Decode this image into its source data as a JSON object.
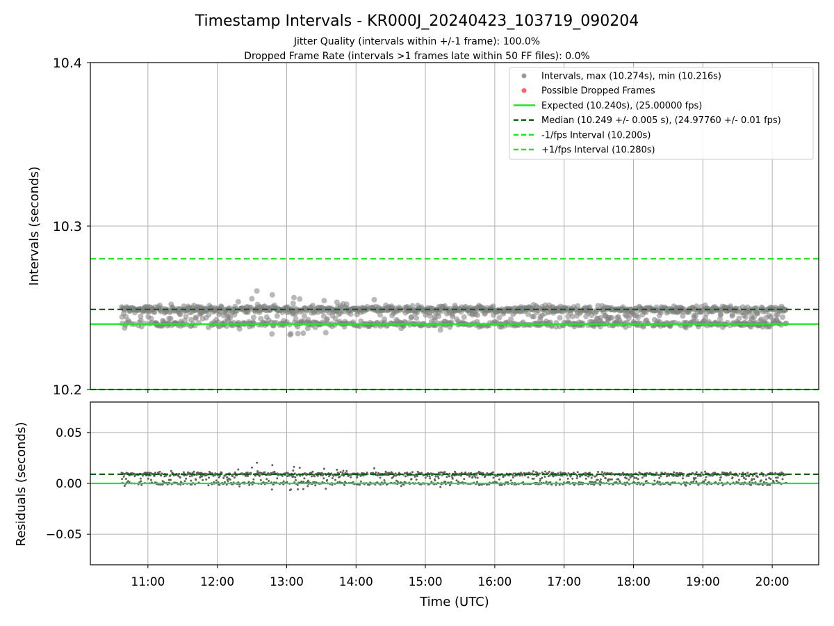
{
  "title": "Timestamp Intervals - KR000J_20240423_103719_090204",
  "subtitle_1": "Jitter Quality (intervals within +/-1 frame): 100.0%",
  "subtitle_2": "Dropped Frame Rate (intervals >1 frames late within 50 FF files): 0.0%",
  "colors": {
    "points": "#808080",
    "dropped": "#ff4444",
    "expected": "#22e622",
    "median": "#006400",
    "fps_bounds": "#22e622",
    "grid": "#b0b0b0"
  },
  "chart_data": [
    {
      "type": "scatter",
      "panel": "intervals",
      "ylabel": "Intervals (seconds)",
      "ylim": [
        10.2,
        10.4
      ],
      "y_ticks": [
        "10.2",
        "10.3",
        "10.4"
      ],
      "y_tick_values": [
        10.2,
        10.3,
        10.4
      ],
      "x_range_hours": [
        10.17,
        20.67
      ],
      "data_x_range_hours": [
        10.62,
        20.2
      ],
      "grid": true,
      "legend_position": "top-right",
      "legend": [
        {
          "label": "Intervals, max (10.274s), min (10.216s)",
          "kind": "point",
          "color": "#999999"
        },
        {
          "label": "Possible Dropped Frames",
          "kind": "point",
          "color": "#ff6666"
        },
        {
          "label": "Expected (10.240s), (25.00000 fps)",
          "kind": "line",
          "color": "#22e622",
          "dash": false
        },
        {
          "label": "Median (10.249 +/- 0.005 s), (24.97760 +/- 0.01 fps)",
          "kind": "line",
          "color": "#006400",
          "dash": true
        },
        {
          "label": "-1/fps Interval (10.200s)",
          "kind": "line",
          "color": "#22e622",
          "dash": true
        },
        {
          "label": "+1/fps Interval (10.280s)",
          "kind": "line",
          "color": "#22e622",
          "dash": true
        }
      ],
      "reference_lines": {
        "expected": 10.24,
        "median": 10.249,
        "minus_one_fps": 10.2,
        "plus_one_fps": 10.28
      },
      "max_interval": 10.274,
      "min_interval": 10.216
    },
    {
      "type": "scatter",
      "panel": "residuals",
      "ylabel": "Residuals (seconds)",
      "xlabel": "Time (UTC)",
      "ylim": [
        -0.08,
        0.08
      ],
      "y_ticks": [
        "0.05",
        "0.00",
        "−0.05"
      ],
      "y_tick_values": [
        0.05,
        0.0,
        -0.05
      ],
      "grid": true,
      "reference_lines": {
        "expected": 0.0,
        "median": 0.009
      }
    }
  ],
  "x_ticks": [
    "11:00",
    "12:00",
    "13:00",
    "14:00",
    "15:00",
    "16:00",
    "17:00",
    "18:00",
    "19:00",
    "20:00"
  ],
  "x_tick_hours": [
    11,
    12,
    13,
    14,
    15,
    16,
    17,
    18,
    19,
    20
  ]
}
